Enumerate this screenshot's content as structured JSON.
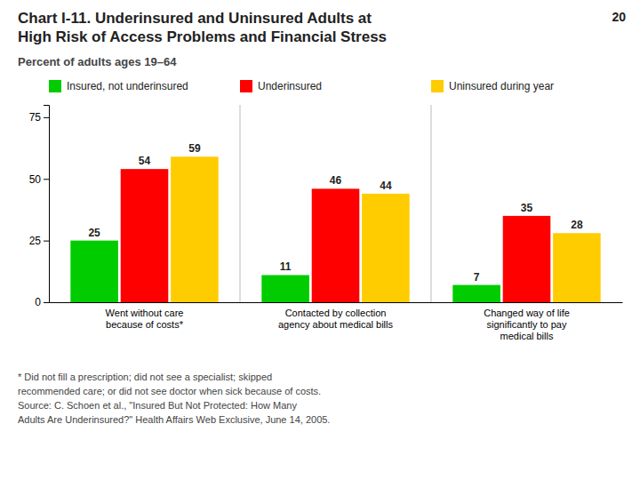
{
  "chart_data": {
    "type": "bar",
    "title": "Chart I-11. Underinsured and Uninsured Adults at\nHigh Risk of Access Problems and Financial Stress",
    "subtitle": "Percent of adults ages 19–64",
    "annotations": [
      "20"
    ],
    "categories": [
      "Went without care\nbecause of costs*",
      "Contacted by collection\nagency about medical bills",
      "Changed way of life\nsignificantly to pay\nmedical bills"
    ],
    "series": [
      {
        "name": "Insured, not underinsured",
        "color": "#00CC00",
        "values": [
          25,
          11,
          7
        ]
      },
      {
        "name": "Underinsured",
        "color": "#FF0000",
        "values": [
          54,
          46,
          35
        ]
      },
      {
        "name": "Uninsured during year",
        "color": "#FFCC00",
        "values": [
          59,
          44,
          28
        ]
      }
    ],
    "ylim": [
      0,
      80
    ],
    "yticks": [
      0,
      25,
      50,
      75
    ],
    "grid": false,
    "legend": "top",
    "data_labels": true,
    "footnotes": [
      "* Did not fill a prescription; did not see a specialist; skipped",
      "recommended care; or did not see doctor when sick because of costs.",
      "Source: C. Schoen et al., \"Insured But Not Protected: How Many",
      "Adults Are Underinsured?\" Health Affairs Web Exclusive, June 14, 2005."
    ]
  }
}
